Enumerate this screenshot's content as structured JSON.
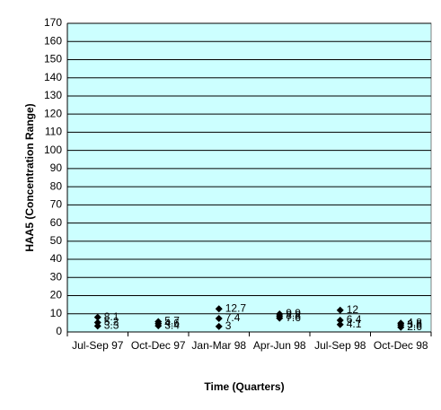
{
  "chart_data": {
    "type": "scatter",
    "x_label": "Time (Quarters)",
    "y_label": "HAA5 (Concentration Range)",
    "categories": [
      "Jul-Sep 97",
      "Oct-Dec 97",
      "Jan-Mar 98",
      "Apr-Jun 98",
      "Jul-Sep 98",
      "Oct-Dec 98"
    ],
    "series": [
      {
        "color": "#000000",
        "values": [
          8.1,
          5.7,
          12.7,
          9.9,
          12,
          4.8
        ]
      },
      {
        "color": "#000000",
        "values": [
          5.2,
          4.6,
          7.4,
          8.8,
          6.4,
          3.8
        ]
      },
      {
        "color": "#000000",
        "values": [
          3.3,
          3.4,
          3,
          7.6,
          4.1,
          2.6
        ]
      }
    ],
    "ylim": [
      0,
      170
    ],
    "yticks": [
      0,
      10,
      20,
      30,
      40,
      50,
      60,
      70,
      80,
      90,
      100,
      110,
      120,
      130,
      140,
      150,
      160,
      170
    ],
    "grid": true,
    "plot_background": "#ccffff"
  }
}
